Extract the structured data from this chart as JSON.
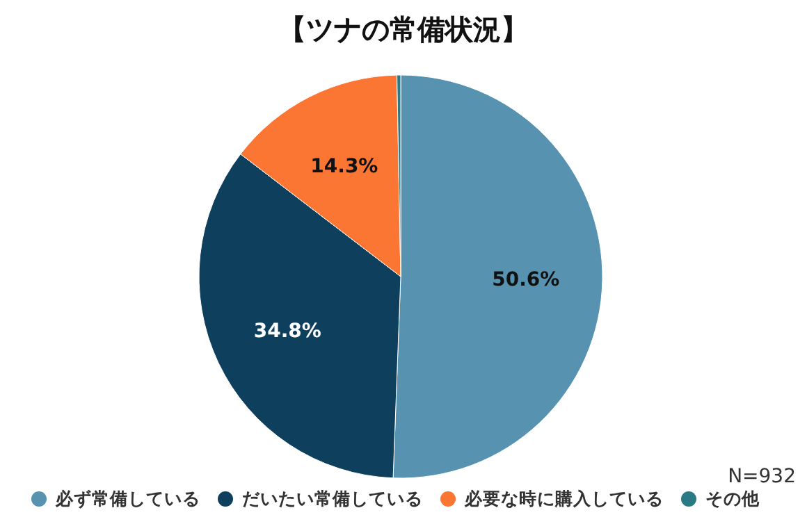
{
  "chart_data": {
    "type": "pie",
    "title": "【ツナの常備状況】",
    "categories": [
      "必ず常備している",
      "だいたい常備している",
      "必要な時に購入している",
      "その他"
    ],
    "values": [
      50.6,
      34.8,
      14.3,
      0.3
    ],
    "colors": [
      "#5793b0",
      "#0e3f5c",
      "#fb7533",
      "#2a7a85"
    ],
    "value_labels": [
      "50.6%",
      "34.8%",
      "14.3%",
      null
    ],
    "annotations": [
      "N=932"
    ],
    "legend": "bottom"
  }
}
